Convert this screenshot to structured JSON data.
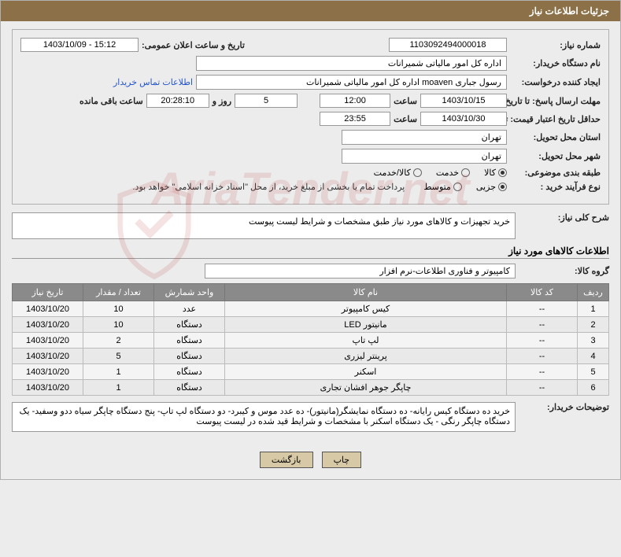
{
  "header_title": "جزئیات اطلاعات نیاز",
  "form": {
    "need_number_label": "شماره نیاز:",
    "need_number": "1103092494000018",
    "announce_date_label": "تاریخ و ساعت اعلان عمومی:",
    "announce_date": "15:12 - 1403/10/09",
    "buyer_org_label": "نام دستگاه خریدار:",
    "buyer_org": "اداره کل امور مالیاتی شمیرانات",
    "requester_label": "ایجاد کننده درخواست:",
    "requester": "رسول جباری moaven اداره کل امور مالیاتی شمیرانات",
    "contact_link": "اطلاعات تماس خریدار",
    "deadline_reply_label": "مهلت ارسال پاسخ: تا تاریخ:",
    "deadline_reply_date": "1403/10/15",
    "at_label": "ساعت",
    "deadline_reply_time": "12:00",
    "days_count": "5",
    "days_and_label": "روز و",
    "countdown": "20:28:10",
    "remaining_label": "ساعت باقی مانده",
    "min_validity_label": "حداقل تاریخ اعتبار قیمت: تا تاریخ:",
    "min_validity_date": "1403/10/30",
    "min_validity_time": "23:55",
    "delivery_province_label": "استان محل تحویل:",
    "delivery_province": "تهران",
    "delivery_city_label": "شهر محل تحویل:",
    "delivery_city": "تهران",
    "category_label": "طبقه بندی موضوعی:",
    "category_options": {
      "goods": "کالا",
      "service": "خدمت",
      "goods_service": "کالا/خدمت"
    },
    "category_selected": "goods",
    "process_type_label": "نوع فرآیند خرید :",
    "process_options": {
      "partial": "جزیی",
      "medium": "متوسط"
    },
    "process_selected": "partial",
    "process_note": "پرداخت تمام یا بخشی از مبلغ خرید، از محل \"اسناد خزانه اسلامی\" خواهد بود."
  },
  "need_desc": {
    "label": "شرح کلی نیاز:",
    "text": "خرید تجهیزات و کالاهای مورد نیاز طبق مشخصات و شرایط لیست پیوست"
  },
  "items_section_title": "اطلاعات کالاهای مورد نیاز",
  "goods_group": {
    "label": "گروه کالا:",
    "value": "کامپیوتر و فناوری اطلاعات-نرم افزار"
  },
  "table": {
    "columns": [
      "ردیف",
      "کد کالا",
      "نام کالا",
      "واحد شمارش",
      "تعداد / مقدار",
      "تاریخ نیاز"
    ],
    "rows": [
      [
        "1",
        "--",
        "کیس کامپیوتر",
        "عدد",
        "10",
        "1403/10/20"
      ],
      [
        "2",
        "--",
        "مانیتور LED",
        "دستگاه",
        "10",
        "1403/10/20"
      ],
      [
        "3",
        "--",
        "لپ تاپ",
        "دستگاه",
        "2",
        "1403/10/20"
      ],
      [
        "4",
        "--",
        "پرینتر لیزری",
        "دستگاه",
        "5",
        "1403/10/20"
      ],
      [
        "5",
        "--",
        "اسکنر",
        "دستگاه",
        "1",
        "1403/10/20"
      ],
      [
        "6",
        "--",
        "چاپگر جوهر افشان تجاری",
        "دستگاه",
        "1",
        "1403/10/20"
      ]
    ],
    "col_widths": [
      "40px",
      "90px",
      "auto",
      "90px",
      "90px",
      "90px"
    ]
  },
  "buyer_notes": {
    "label": "توضیحات خریدار:",
    "text": "خرید ده دستگاه کیس رایانه- ده دستگاه نمایشگر(مانیتور)- ده عدد موس و کیبرد- دو دستگاه لپ تاپ- پنج دستگاه چاپگر سیاه ددو وسفید- یک دستگاه چاپگر رنگی - یک دستگاه اسکنر با مشخصات و شرایط قید شده در لیست پیوست"
  },
  "buttons": {
    "print": "چاپ",
    "back": "بازگشت"
  },
  "watermark_text": "AriaTender.net",
  "colors": {
    "header_bg": "#8c7047",
    "bg": "#ececec",
    "th_bg": "#8a8a8a",
    "btn_bg": "#d7c9a5",
    "link": "#2255cc",
    "watermark": "rgba(180,30,30,0.12)"
  }
}
